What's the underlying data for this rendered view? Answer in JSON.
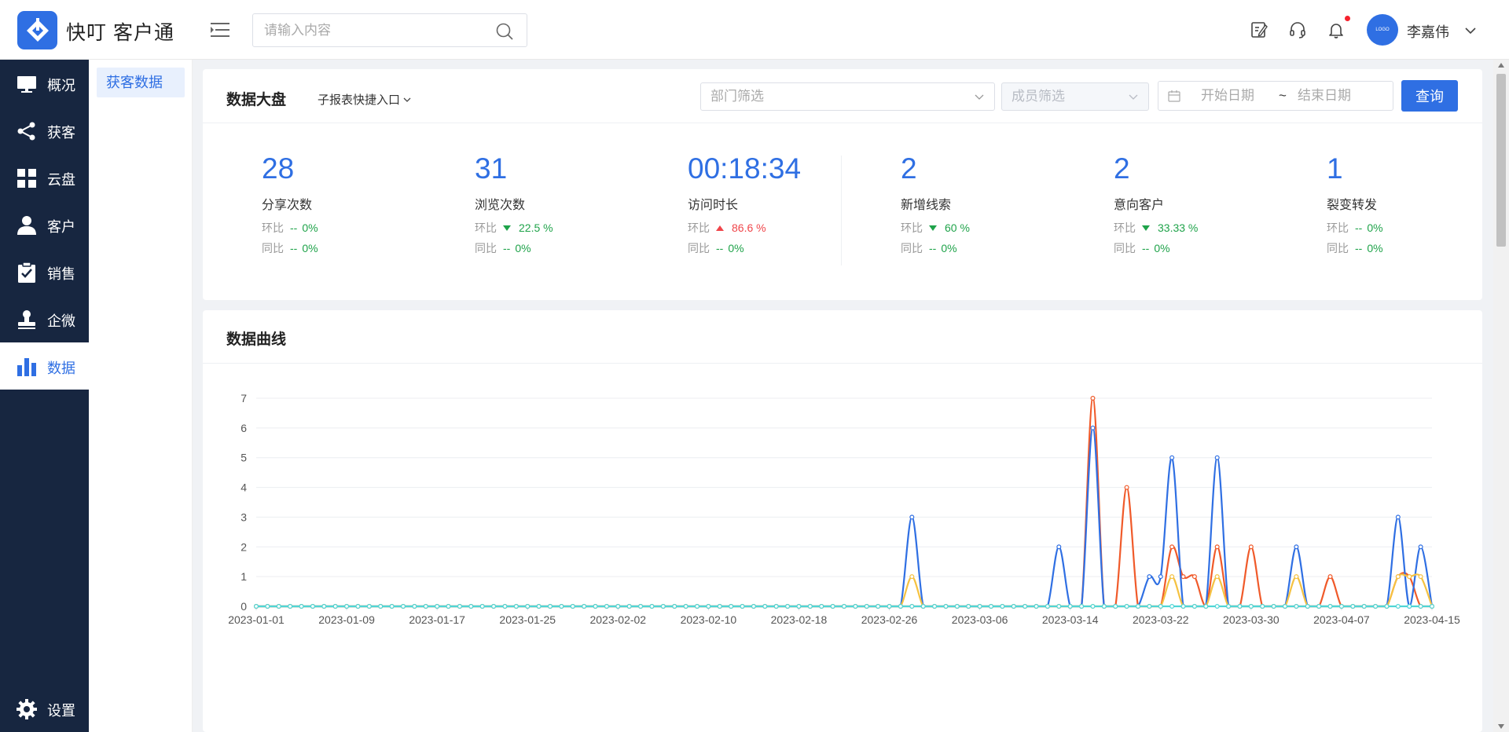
{
  "app": {
    "logo_text": "快叮 客户通"
  },
  "header": {
    "search_placeholder": "请输入内容",
    "user_name": "李嘉伟",
    "avatar_text": "LOGO"
  },
  "sidebar": {
    "items": [
      {
        "label": "概况",
        "icon": "monitor-icon"
      },
      {
        "label": "获客",
        "icon": "share-icon"
      },
      {
        "label": "云盘",
        "icon": "grid-icon"
      },
      {
        "label": "客户",
        "icon": "user-icon"
      },
      {
        "label": "销售",
        "icon": "clipboard-check-icon"
      },
      {
        "label": "企微",
        "icon": "stamp-icon"
      },
      {
        "label": "数据",
        "icon": "bar-chart-icon",
        "active": true
      }
    ],
    "settings_label": "设置"
  },
  "submenu": {
    "active_label": "获客数据"
  },
  "dashboard": {
    "title": "数据大盘",
    "sub_report_label": "子报表快捷入口",
    "dept_placeholder": "部门筛选",
    "member_placeholder": "成员筛选",
    "start_placeholder": "开始日期",
    "end_placeholder": "结束日期",
    "date_sep": "~",
    "query_label": "查询",
    "mom_label": "环比",
    "yoy_label": "同比",
    "metrics": [
      {
        "value": "28",
        "name": "分享次数",
        "mom": "0%",
        "mom_trend": "--",
        "yoy": "0%",
        "yoy_trend": "--"
      },
      {
        "value": "31",
        "name": "浏览次数",
        "mom": "22.5 %",
        "mom_trend": "down",
        "yoy": "0%",
        "yoy_trend": "--"
      },
      {
        "value": "00:18:34",
        "name": "访问时长",
        "mom": "86.6 %",
        "mom_trend": "up",
        "yoy": "0%",
        "yoy_trend": "--"
      },
      {
        "value": "2",
        "name": "新增线索",
        "mom": "60 %",
        "mom_trend": "down",
        "yoy": "0%",
        "yoy_trend": "--"
      },
      {
        "value": "2",
        "name": "意向客户",
        "mom": "33.33 %",
        "mom_trend": "down",
        "yoy": "0%",
        "yoy_trend": "--"
      },
      {
        "value": "1",
        "name": "裂变转发",
        "mom": "0%",
        "mom_trend": "--",
        "yoy": "0%",
        "yoy_trend": "--"
      }
    ]
  },
  "curve": {
    "title": "数据曲线"
  },
  "chart_data": {
    "type": "line",
    "title": "",
    "xlabel": "",
    "ylabel": "",
    "start_date": "2023-01-01",
    "x_tick_labels": [
      "2023-01-01",
      "2023-01-09",
      "2023-01-17",
      "2023-01-25",
      "2023-02-02",
      "2023-02-10",
      "2023-02-18",
      "2023-02-26",
      "2023-03-06",
      "2023-03-14",
      "2023-03-22",
      "2023-03-30",
      "2023-04-07",
      "2023-04-15"
    ],
    "ylim": [
      0,
      7
    ],
    "y_ticks": [
      0,
      1,
      2,
      3,
      4,
      5,
      6,
      7
    ],
    "grid": true,
    "series": [
      {
        "color": "#f05a2a",
        "points": [
          [
            "2023-03-16",
            7
          ],
          [
            "2023-03-19",
            4
          ],
          [
            "2023-03-23",
            2
          ],
          [
            "2023-03-24",
            1
          ],
          [
            "2023-03-25",
            1
          ],
          [
            "2023-03-27",
            2
          ],
          [
            "2023-03-30",
            2
          ],
          [
            "2023-04-06",
            1
          ],
          [
            "2023-04-12",
            1
          ],
          [
            "2023-04-13",
            1
          ]
        ]
      },
      {
        "color": "#2f6fe3",
        "points": [
          [
            "2023-02-28",
            3
          ],
          [
            "2023-03-13",
            2
          ],
          [
            "2023-03-16",
            6
          ],
          [
            "2023-03-21",
            1
          ],
          [
            "2023-03-22",
            1
          ],
          [
            "2023-03-23",
            5
          ],
          [
            "2023-03-27",
            5
          ],
          [
            "2023-04-03",
            2
          ],
          [
            "2023-04-12",
            3
          ],
          [
            "2023-04-14",
            2
          ]
        ]
      },
      {
        "color": "#f5c242",
        "points": [
          [
            "2023-02-28",
            1
          ],
          [
            "2023-03-23",
            1
          ],
          [
            "2023-03-27",
            1
          ],
          [
            "2023-04-03",
            1
          ],
          [
            "2023-04-12",
            1
          ],
          [
            "2023-04-13",
            1
          ],
          [
            "2023-04-14",
            1
          ]
        ]
      },
      {
        "color": "#4fd6d6",
        "points": []
      }
    ]
  }
}
